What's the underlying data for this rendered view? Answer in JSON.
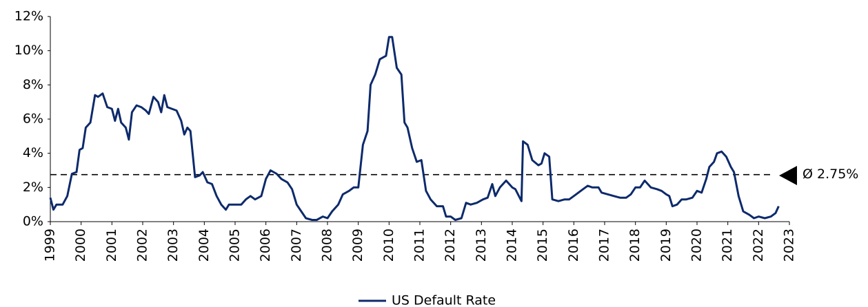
{
  "chart_data": {
    "type": "line",
    "x": [
      1999.0,
      1999.1,
      1999.2,
      1999.4,
      1999.55,
      1999.7,
      1999.85,
      1999.95,
      2000.05,
      2000.15,
      2000.3,
      2000.45,
      2000.55,
      2000.7,
      2000.85,
      2001.0,
      2001.1,
      2001.2,
      2001.3,
      2001.45,
      2001.55,
      2001.65,
      2001.8,
      2001.95,
      2002.1,
      2002.2,
      2002.35,
      2002.5,
      2002.6,
      2002.7,
      2002.8,
      2002.95,
      2003.1,
      2003.25,
      2003.35,
      2003.45,
      2003.55,
      2003.7,
      2003.85,
      2003.95,
      2004.1,
      2004.25,
      2004.4,
      2004.55,
      2004.7,
      2004.8,
      2005.0,
      2005.2,
      2005.35,
      2005.5,
      2005.65,
      2005.85,
      2006.0,
      2006.15,
      2006.35,
      2006.5,
      2006.7,
      2006.85,
      2007.0,
      2007.15,
      2007.3,
      2007.5,
      2007.65,
      2007.85,
      2008.0,
      2008.15,
      2008.35,
      2008.5,
      2008.7,
      2008.85,
      2009.0,
      2009.15,
      2009.3,
      2009.4,
      2009.55,
      2009.7,
      2009.9,
      2010.0,
      2010.1,
      2010.25,
      2010.4,
      2010.5,
      2010.6,
      2010.75,
      2010.9,
      2011.05,
      2011.2,
      2011.35,
      2011.55,
      2011.75,
      2011.85,
      2012.0,
      2012.15,
      2012.35,
      2012.5,
      2012.65,
      2012.85,
      2013.05,
      2013.2,
      2013.35,
      2013.45,
      2013.6,
      2013.8,
      2014.0,
      2014.1,
      2014.3,
      2014.35,
      2014.5,
      2014.65,
      2014.85,
      2014.95,
      2015.05,
      2015.2,
      2015.3,
      2015.5,
      2015.7,
      2015.85,
      2016.0,
      2016.15,
      2016.3,
      2016.45,
      2016.6,
      2016.8,
      2016.9,
      2017.1,
      2017.3,
      2017.5,
      2017.7,
      2017.85,
      2018.0,
      2018.15,
      2018.3,
      2018.5,
      2018.7,
      2018.85,
      2019.0,
      2019.1,
      2019.2,
      2019.35,
      2019.5,
      2019.65,
      2019.85,
      2020.0,
      2020.15,
      2020.3,
      2020.4,
      2020.55,
      2020.65,
      2020.8,
      2020.95,
      2021.1,
      2021.2,
      2021.35,
      2021.5,
      2021.7,
      2021.85,
      2022.0,
      2022.2,
      2022.4,
      2022.55,
      2022.65
    ],
    "series": [
      {
        "name": "US Default Rate",
        "color": "#0d2a6b",
        "values": [
          1.4,
          0.7,
          1.0,
          1.0,
          1.5,
          2.8,
          2.9,
          4.2,
          4.3,
          5.5,
          5.8,
          7.4,
          7.3,
          7.5,
          6.7,
          6.6,
          5.9,
          6.6,
          5.8,
          5.5,
          4.8,
          6.4,
          6.8,
          6.7,
          6.5,
          6.3,
          7.3,
          7.0,
          6.4,
          7.4,
          6.7,
          6.6,
          6.5,
          5.9,
          5.1,
          5.5,
          5.3,
          2.6,
          2.7,
          2.9,
          2.3,
          2.2,
          1.5,
          1.0,
          0.7,
          1.0,
          1.0,
          1.0,
          1.3,
          1.5,
          1.3,
          1.5,
          2.5,
          3.0,
          2.8,
          2.5,
          2.3,
          1.9,
          1.0,
          0.6,
          0.2,
          0.1,
          0.1,
          0.3,
          0.2,
          0.6,
          1.0,
          1.6,
          1.8,
          2.0,
          2.0,
          4.5,
          5.3,
          8.0,
          8.6,
          9.5,
          9.7,
          10.8,
          10.8,
          9.0,
          8.6,
          5.8,
          5.5,
          4.3,
          3.5,
          3.6,
          1.8,
          1.3,
          0.9,
          0.9,
          0.3,
          0.3,
          0.1,
          0.2,
          1.1,
          1.0,
          1.1,
          1.3,
          1.4,
          2.2,
          1.5,
          2.0,
          2.4,
          2.0,
          1.9,
          1.2,
          4.7,
          4.5,
          3.6,
          3.3,
          3.4,
          4.0,
          3.8,
          1.3,
          1.2,
          1.3,
          1.3,
          1.5,
          1.7,
          1.9,
          2.1,
          2.0,
          2.0,
          1.7,
          1.6,
          1.5,
          1.4,
          1.4,
          1.6,
          2.0,
          2.0,
          2.4,
          2.0,
          1.9,
          1.8,
          1.6,
          1.5,
          0.9,
          1.0,
          1.3,
          1.3,
          1.4,
          1.8,
          1.7,
          2.5,
          3.2,
          3.5,
          4.0,
          4.1,
          3.8,
          3.2,
          2.9,
          1.5,
          0.6,
          0.4,
          0.2,
          0.3,
          0.2,
          0.3,
          0.5,
          0.9
        ]
      }
    ],
    "xlim": [
      1999,
      2023
    ],
    "xticks": [
      1999,
      2000,
      2001,
      2002,
      2003,
      2004,
      2005,
      2006,
      2007,
      2008,
      2009,
      2010,
      2011,
      2012,
      2013,
      2014,
      2015,
      2016,
      2017,
      2018,
      2019,
      2020,
      2021,
      2022,
      2023
    ],
    "ylim": [
      0,
      12
    ],
    "yticks": [
      {
        "value": 0,
        "label": "0%"
      },
      {
        "value": 2,
        "label": "2%"
      },
      {
        "value": 4,
        "label": "4%"
      },
      {
        "value": 6,
        "label": "6%"
      },
      {
        "value": 8,
        "label": "8%"
      },
      {
        "value": 10,
        "label": "10%"
      },
      {
        "value": 12,
        "label": "12%"
      }
    ],
    "average": {
      "value": 2.75,
      "label": "Ø 2.75%"
    },
    "legend": "bottom"
  }
}
